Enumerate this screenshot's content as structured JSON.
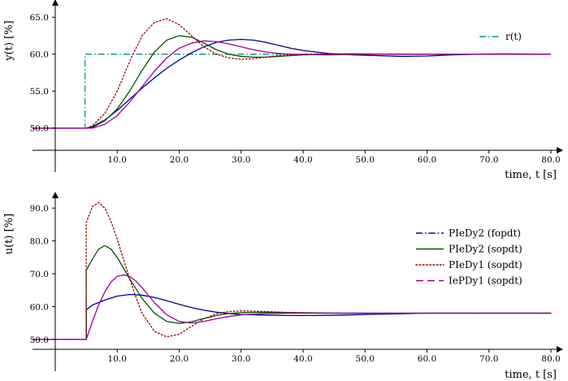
{
  "chart_data": [
    {
      "type": "line",
      "xlabel": "time, t [s]",
      "ylabel": "y(t) [%]",
      "xlim": [
        0,
        80
      ],
      "ylim": [
        47,
        67
      ],
      "xticks": [
        "10.0",
        "20.0",
        "30.0",
        "40.0",
        "50.0",
        "60.0",
        "70.0",
        "80.0"
      ],
      "yticks": [
        "50.0",
        "55.0",
        "60.0",
        "65.0"
      ],
      "legend_position": "top-right",
      "legend": [
        {
          "label": "r(t)",
          "color": "#009988",
          "style": "dashdot"
        }
      ],
      "series": [
        {
          "name": "r(t)",
          "color": "#009988",
          "style": "dashdot",
          "x": [
            -10,
            4.8,
            4.8,
            80
          ],
          "y": [
            50,
            50,
            60,
            60
          ]
        },
        {
          "color": "#000099",
          "style": "solid",
          "x": [
            -10,
            5,
            6,
            8,
            10,
            12,
            14,
            16,
            18,
            20,
            22,
            24,
            26,
            28,
            30,
            32,
            34,
            36,
            38,
            40,
            44,
            48,
            52,
            56,
            60,
            64,
            68,
            72,
            76,
            80
          ],
          "y": [
            50,
            50,
            50.2,
            51.1,
            52.4,
            53.9,
            55.4,
            56.8,
            58.1,
            59.2,
            60.2,
            61,
            61.6,
            61.9,
            62,
            61.9,
            61.6,
            61.2,
            60.8,
            60.5,
            60.1,
            59.9,
            59.8,
            59.7,
            59.75,
            59.9,
            60,
            60.05,
            60.02,
            60
          ]
        },
        {
          "color": "#005500",
          "style": "solid",
          "x": [
            -10,
            5,
            6,
            8,
            10,
            12,
            14,
            16,
            18,
            20,
            22,
            24,
            26,
            28,
            30,
            32,
            34,
            36,
            38,
            40,
            44,
            48,
            52,
            56,
            60,
            70,
            80
          ],
          "y": [
            50,
            50,
            50.1,
            51,
            52.6,
            55,
            57.8,
            60.3,
            61.9,
            62.5,
            62.3,
            61.5,
            60.6,
            60,
            59.7,
            59.6,
            59.6,
            59.7,
            59.8,
            59.9,
            60,
            60.05,
            60.02,
            60,
            60,
            60,
            60
          ]
        },
        {
          "color": "#990000",
          "style": "dotted",
          "x": [
            -10,
            5,
            6,
            8,
            10,
            12,
            14,
            16,
            18,
            20,
            22,
            24,
            26,
            28,
            30,
            32,
            34,
            36,
            38,
            40,
            44,
            48,
            52,
            56,
            60,
            70,
            80
          ],
          "y": [
            50,
            50,
            50.3,
            52,
            55,
            59,
            62.5,
            64.3,
            64.8,
            64,
            62.5,
            61,
            60,
            59.5,
            59.3,
            59.4,
            59.6,
            59.8,
            59.9,
            60,
            60.05,
            60.05,
            60,
            60,
            60,
            60,
            60
          ]
        },
        {
          "color": "#990099",
          "style": "solid",
          "x": [
            -10,
            5,
            6,
            8,
            10,
            12,
            14,
            16,
            18,
            20,
            22,
            24,
            26,
            28,
            30,
            32,
            34,
            36,
            38,
            40,
            44,
            48,
            52,
            56,
            60,
            70,
            80
          ],
          "y": [
            50,
            50,
            50,
            50.5,
            51.7,
            53.5,
            55.6,
            57.7,
            59.5,
            60.8,
            61.5,
            61.8,
            61.7,
            61.4,
            61,
            60.6,
            60.3,
            60.1,
            60,
            59.95,
            59.9,
            59.95,
            60,
            60.02,
            60,
            60,
            60
          ]
        }
      ]
    },
    {
      "type": "line",
      "xlabel": "time, t [s]",
      "ylabel": "u(t) [%]",
      "xlim": [
        0,
        80
      ],
      "ylim": [
        47,
        94
      ],
      "xticks": [
        "10.0",
        "20.0",
        "30.0",
        "40.0",
        "50.0",
        "60.0",
        "70.0",
        "80.0"
      ],
      "yticks": [
        "50.0",
        "60.0",
        "70.0",
        "80.0",
        "90.0"
      ],
      "legend_position": "right",
      "legend": [
        {
          "label": "PIeDy2 (fopdt)",
          "color": "#000099",
          "style": "dashdot"
        },
        {
          "label": "PIeDy2 (sopdt)",
          "color": "#005500",
          "style": "solid"
        },
        {
          "label": "PIeDy1 (sopdt)",
          "color": "#990000",
          "style": "dotted"
        },
        {
          "label": "IePDy1 (sopdt)",
          "color": "#990099",
          "style": "dashed"
        }
      ],
      "series": [
        {
          "name": "PIeDy2 (fopdt)",
          "color": "#000099",
          "style": "solid",
          "x": [
            -10,
            5,
            5,
            6,
            8,
            10,
            12,
            14,
            16,
            18,
            20,
            22,
            24,
            26,
            28,
            30,
            34,
            38,
            42,
            46,
            50,
            55,
            60,
            70,
            80
          ],
          "y": [
            50,
            50,
            59,
            60.5,
            62,
            63.2,
            63.7,
            63.5,
            62.8,
            61.8,
            60.7,
            59.7,
            58.9,
            58.3,
            57.9,
            57.6,
            57.4,
            57.3,
            57.3,
            57.4,
            57.6,
            57.8,
            58,
            58,
            58
          ]
        },
        {
          "name": "PIeDy2 (sopdt)",
          "color": "#005500",
          "style": "solid",
          "x": [
            -10,
            5,
            5,
            6,
            7,
            8,
            9,
            10,
            11,
            12,
            14,
            16,
            18,
            20,
            22,
            24,
            26,
            28,
            30,
            34,
            38,
            42,
            46,
            50,
            60,
            70,
            80
          ],
          "y": [
            50,
            50,
            71,
            74.5,
            77.5,
            78.6,
            77.5,
            75,
            71.8,
            68.5,
            62.5,
            58,
            55.5,
            54.9,
            55.4,
            56.4,
            57.3,
            57.9,
            58.2,
            58.3,
            58.2,
            58.1,
            58,
            58,
            58,
            58,
            58
          ]
        },
        {
          "name": "PIeDy1 (sopdt)",
          "color": "#990000",
          "style": "dotted",
          "x": [
            -10,
            5,
            5,
            6,
            7,
            8,
            9,
            10,
            11,
            12,
            13,
            14,
            16,
            18,
            20,
            22,
            24,
            26,
            28,
            30,
            34,
            38,
            42,
            46,
            50,
            60,
            70,
            80
          ],
          "y": [
            50,
            50,
            85.5,
            90.5,
            91.7,
            90,
            86,
            80.5,
            74.5,
            68.5,
            63,
            58,
            52.5,
            50.8,
            51.6,
            54,
            56.3,
            57.8,
            58.5,
            58.7,
            58.5,
            58.2,
            58,
            58,
            58,
            58,
            58,
            58
          ]
        },
        {
          "name": "IePDy1 (sopdt)",
          "color": "#990099",
          "style": "solid",
          "x": [
            -10,
            5,
            6,
            7,
            8,
            9,
            10,
            11,
            12,
            13,
            14,
            16,
            18,
            20,
            22,
            24,
            26,
            28,
            30,
            34,
            38,
            42,
            46,
            50,
            60,
            70,
            80
          ],
          "y": [
            50,
            50,
            55.5,
            60.5,
            64.5,
            67.5,
            69.2,
            69.7,
            69.2,
            67.8,
            65.8,
            61.2,
            57.5,
            55.5,
            55,
            55.5,
            56.3,
            57,
            57.5,
            57.9,
            58,
            58,
            58,
            58,
            58,
            58,
            58
          ]
        }
      ]
    }
  ]
}
